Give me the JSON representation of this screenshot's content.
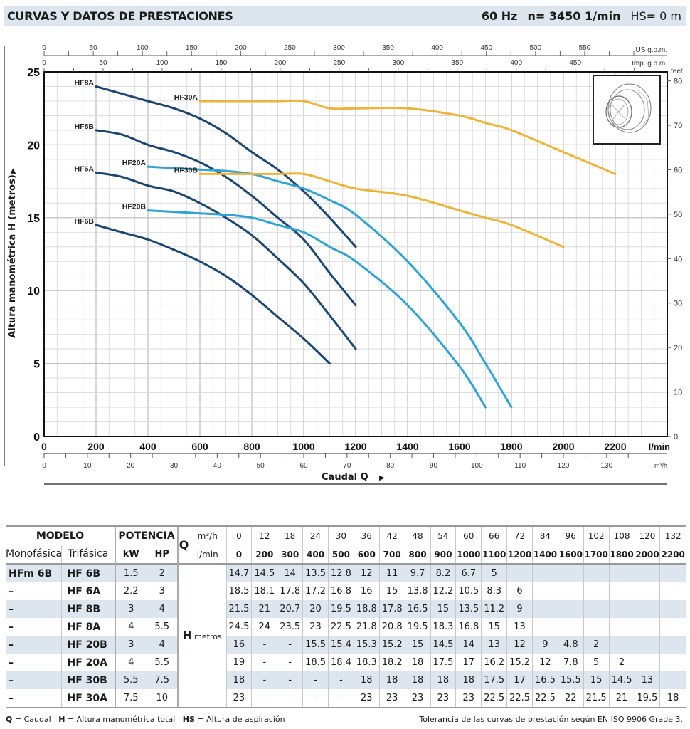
{
  "header": {
    "title": "CURVAS Y DATOS DE PRESTACIONES",
    "freq": "60 Hz",
    "speed": "n= 3450  1/min",
    "hs": "HS= 0 m"
  },
  "colors": {
    "dark_blue": "#1c4672",
    "light_blue": "#2fa3d6",
    "orange": "#eeb43a",
    "grid": "#cfcfcf",
    "header_bg": "#dde6ee"
  },
  "chart_data": {
    "type": "line",
    "title": "CURVAS Y DATOS DE PRESTACIONES",
    "xlabel": "Caudal  Q",
    "ylabel": "Altura manométrica  H  (metros)",
    "x_unit": "l/min",
    "xlim": [
      0,
      2400
    ],
    "ylim": [
      0,
      25
    ],
    "grid": true,
    "x_ticks": [
      0,
      200,
      400,
      600,
      800,
      1000,
      1200,
      1400,
      1600,
      1800,
      2000,
      2200
    ],
    "y_ticks": [
      0,
      5,
      10,
      15,
      20,
      25
    ],
    "secondary_axes": {
      "m3h": {
        "label": "m³/h",
        "ticks": [
          0,
          10,
          20,
          30,
          40,
          50,
          60,
          70,
          80,
          90,
          100,
          110,
          120,
          130
        ]
      },
      "us_gpm": {
        "label": "US g.p.m.",
        "ticks": [
          0,
          50,
          100,
          150,
          200,
          250,
          300,
          350,
          400,
          450,
          500,
          550
        ]
      },
      "imp_gpm": {
        "label": "Imp. g.p.m.",
        "ticks": [
          0,
          50,
          100,
          150,
          200,
          250,
          300,
          350,
          400,
          450
        ]
      },
      "feet": {
        "label": "feet",
        "ticks": [
          0,
          10,
          20,
          30,
          40,
          50,
          60,
          70,
          80
        ]
      }
    },
    "series": [
      {
        "name": "HF6B",
        "color": "dark_blue",
        "x": [
          200,
          300,
          400,
          500,
          600,
          700,
          800,
          900,
          1000,
          1100
        ],
        "y": [
          14.5,
          14,
          13.5,
          12.8,
          12,
          11,
          9.7,
          8.2,
          6.7,
          5
        ]
      },
      {
        "name": "HF6A",
        "color": "dark_blue",
        "x": [
          200,
          300,
          400,
          500,
          600,
          700,
          800,
          900,
          1000,
          1100,
          1200
        ],
        "y": [
          18.1,
          17.8,
          17.2,
          16.8,
          16,
          15,
          13.8,
          12.2,
          10.5,
          8.3,
          6
        ]
      },
      {
        "name": "HF8B",
        "color": "dark_blue",
        "x": [
          200,
          300,
          400,
          500,
          600,
          700,
          800,
          900,
          1000,
          1100,
          1200
        ],
        "y": [
          21,
          20.7,
          20,
          19.5,
          18.8,
          17.8,
          16.5,
          15,
          13.5,
          11.2,
          9
        ]
      },
      {
        "name": "HF8A",
        "color": "dark_blue",
        "x": [
          200,
          300,
          400,
          500,
          600,
          700,
          800,
          900,
          1000,
          1100,
          1200
        ],
        "y": [
          24,
          23.5,
          23,
          22.5,
          21.8,
          20.8,
          19.5,
          18.3,
          16.8,
          15,
          13
        ]
      },
      {
        "name": "HF20B",
        "color": "light_blue",
        "x": [
          400,
          500,
          600,
          700,
          800,
          900,
          1000,
          1100,
          1200,
          1400,
          1600,
          1700
        ],
        "y": [
          15.5,
          15.4,
          15.3,
          15.2,
          15,
          14.5,
          14,
          13,
          12,
          9,
          4.8,
          2
        ]
      },
      {
        "name": "HF20A",
        "color": "light_blue",
        "x": [
          400,
          500,
          600,
          700,
          800,
          900,
          1000,
          1100,
          1200,
          1400,
          1600,
          1700,
          1800
        ],
        "y": [
          18.5,
          18.4,
          18.3,
          18.2,
          18,
          17.5,
          17,
          16.2,
          15.2,
          12,
          7.8,
          5,
          2
        ]
      },
      {
        "name": "HF30B",
        "color": "orange",
        "x": [
          600,
          700,
          800,
          900,
          1000,
          1100,
          1200,
          1400,
          1600,
          1700,
          1800,
          2000
        ],
        "y": [
          18,
          18,
          18,
          18,
          18,
          17.5,
          17,
          16.5,
          15.5,
          15,
          14.5,
          13
        ]
      },
      {
        "name": "HF30A",
        "color": "orange",
        "x": [
          600,
          700,
          800,
          900,
          1000,
          1100,
          1200,
          1400,
          1600,
          1700,
          1800,
          2000,
          2200
        ],
        "y": [
          23,
          23,
          23,
          23,
          23,
          22.5,
          22.5,
          22.5,
          22,
          21.5,
          21,
          19.5,
          18
        ]
      }
    ],
    "curve_labels": [
      "HF8A",
      "HF8B",
      "HF6A",
      "HF6B",
      "HF20A",
      "HF20B",
      "HF30A",
      "HF30B"
    ]
  },
  "table": {
    "headers": {
      "modelo": "MODELO",
      "potencia": "POTENCIA",
      "monofasica": "Monofásica",
      "trifasica": "Trifásica",
      "kw": "kW",
      "hp": "HP",
      "q": "Q",
      "m3h": "m³/h",
      "lmin": "l/min",
      "h": "H",
      "metros": "metros"
    },
    "q_m3h": [
      "0",
      "12",
      "18",
      "24",
      "30",
      "36",
      "42",
      "48",
      "54",
      "60",
      "66",
      "72",
      "84",
      "96",
      "102",
      "108",
      "120",
      "132"
    ],
    "q_lmin": [
      "0",
      "200",
      "300",
      "400",
      "500",
      "600",
      "700",
      "800",
      "900",
      "1000",
      "1100",
      "1200",
      "1400",
      "1600",
      "1700",
      "1800",
      "2000",
      "2200"
    ],
    "rows": [
      {
        "mono": "HFm 6B",
        "tri": "HF 6B",
        "kw": "1.5",
        "hp": "2",
        "h": [
          "14.7",
          "14.5",
          "14",
          "13.5",
          "12.8",
          "12",
          "11",
          "9.7",
          "8.2",
          "6.7",
          "5",
          "",
          "",
          "",
          "",
          "",
          "",
          ""
        ]
      },
      {
        "mono": "–",
        "tri": "HF 6A",
        "kw": "2.2",
        "hp": "3",
        "h": [
          "18.5",
          "18.1",
          "17.8",
          "17.2",
          "16.8",
          "16",
          "15",
          "13.8",
          "12.2",
          "10.5",
          "8.3",
          "6",
          "",
          "",
          "",
          "",
          "",
          ""
        ]
      },
      {
        "mono": "–",
        "tri": "HF 8B",
        "kw": "3",
        "hp": "4",
        "h": [
          "21.5",
          "21",
          "20.7",
          "20",
          "19.5",
          "18.8",
          "17.8",
          "16.5",
          "15",
          "13.5",
          "11.2",
          "9",
          "",
          "",
          "",
          "",
          "",
          ""
        ]
      },
      {
        "mono": "–",
        "tri": "HF 8A",
        "kw": "4",
        "hp": "5.5",
        "h": [
          "24.5",
          "24",
          "23.5",
          "23",
          "22.5",
          "21.8",
          "20.8",
          "19.5",
          "18.3",
          "16.8",
          "15",
          "13",
          "",
          "",
          "",
          "",
          "",
          ""
        ]
      },
      {
        "mono": "–",
        "tri": "HF 20B",
        "kw": "3",
        "hp": "4",
        "h": [
          "16",
          "-",
          "-",
          "15.5",
          "15.4",
          "15.3",
          "15.2",
          "15",
          "14.5",
          "14",
          "13",
          "12",
          "9",
          "4.8",
          "2",
          "",
          "",
          ""
        ]
      },
      {
        "mono": "–",
        "tri": "HF 20A",
        "kw": "4",
        "hp": "5.5",
        "h": [
          "19",
          "-",
          "-",
          "18.5",
          "18.4",
          "18.3",
          "18.2",
          "18",
          "17.5",
          "17",
          "16.2",
          "15.2",
          "12",
          "7.8",
          "5",
          "2",
          "",
          ""
        ]
      },
      {
        "mono": "–",
        "tri": "HF 30B",
        "kw": "5.5",
        "hp": "7.5",
        "h": [
          "18",
          "-",
          "-",
          "-",
          "-",
          "18",
          "18",
          "18",
          "18",
          "18",
          "17.5",
          "17",
          "16.5",
          "15.5",
          "15",
          "14.5",
          "13",
          ""
        ]
      },
      {
        "mono": "–",
        "tri": "HF 30A",
        "kw": "7.5",
        "hp": "10",
        "h": [
          "23",
          "-",
          "-",
          "-",
          "-",
          "23",
          "23",
          "23",
          "23",
          "23",
          "22.5",
          "22.5",
          "22.5",
          "22",
          "21.5",
          "21",
          "19.5",
          "18"
        ]
      }
    ]
  },
  "footer": {
    "q_key": "Q",
    "q_def": " = Caudal",
    "h_key": "H",
    "h_def": " = Altura manométrica total",
    "hs_key": "HS",
    "hs_def": " = Altura de aspiración",
    "tolerance": "Tolerancia de las curvas de prestación según EN ISO 9906 Grade 3."
  }
}
